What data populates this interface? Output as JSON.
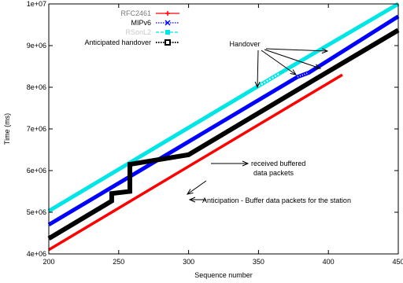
{
  "chart_data": {
    "type": "line",
    "title": "",
    "xlabel": "Sequence number",
    "ylabel": "Time (ms)",
    "xlim": [
      200,
      450
    ],
    "ylim": [
      4000000,
      10000000
    ],
    "x_ticks": [
      200,
      250,
      300,
      350,
      400,
      450
    ],
    "y_ticks": [
      4000000,
      5000000,
      6000000,
      7000000,
      8000000,
      9000000,
      10000000
    ],
    "x_tick_labels": [
      "200",
      "250",
      "300",
      "350",
      "400",
      "450"
    ],
    "y_tick_labels": [
      "4e+06",
      "5e+06",
      "6e+06",
      "7e+06",
      "8e+06",
      "9e+06",
      "1e+07"
    ],
    "grid": false,
    "legend_position": "top-left",
    "series": [
      {
        "name": "RFC2461",
        "color": "#ff0000",
        "style": "solid",
        "marker": "plus",
        "points": [
          [
            200,
            4100000
          ],
          [
            410,
            8300000
          ]
        ]
      },
      {
        "name": "MIPv6",
        "color": "#0000ff",
        "style": "dotted",
        "marker": "x",
        "points": [
          [
            200,
            4700000
          ],
          [
            378,
            8250000
          ],
          [
            386,
            8350000
          ],
          [
            450,
            9700000
          ]
        ]
      },
      {
        "name": "RSonL2",
        "color": "#00e5e5",
        "style": "dashed",
        "marker": "square",
        "points": [
          [
            200,
            5030000
          ],
          [
            350,
            8030000
          ],
          [
            365,
            8330000
          ],
          [
            450,
            10000000
          ]
        ]
      },
      {
        "name": "Anticipated handover",
        "color": "#000000",
        "style": "dotted",
        "marker": "square-open",
        "points": [
          [
            200,
            4370000
          ],
          [
            245,
            5270000
          ],
          [
            245,
            5450000
          ],
          [
            258,
            5500000
          ],
          [
            258,
            6150000
          ],
          [
            300,
            6380000
          ],
          [
            390,
            8180000
          ],
          [
            450,
            9370000
          ]
        ]
      }
    ],
    "annotations": [
      {
        "text": "Handover",
        "color": "#000000"
      },
      {
        "text": "received buffered",
        "color": "#000000"
      },
      {
        "text": "data packets",
        "color": "#000000"
      },
      {
        "text": "Anticipation - Buffer data packets for the station",
        "color": "#000000"
      }
    ]
  }
}
